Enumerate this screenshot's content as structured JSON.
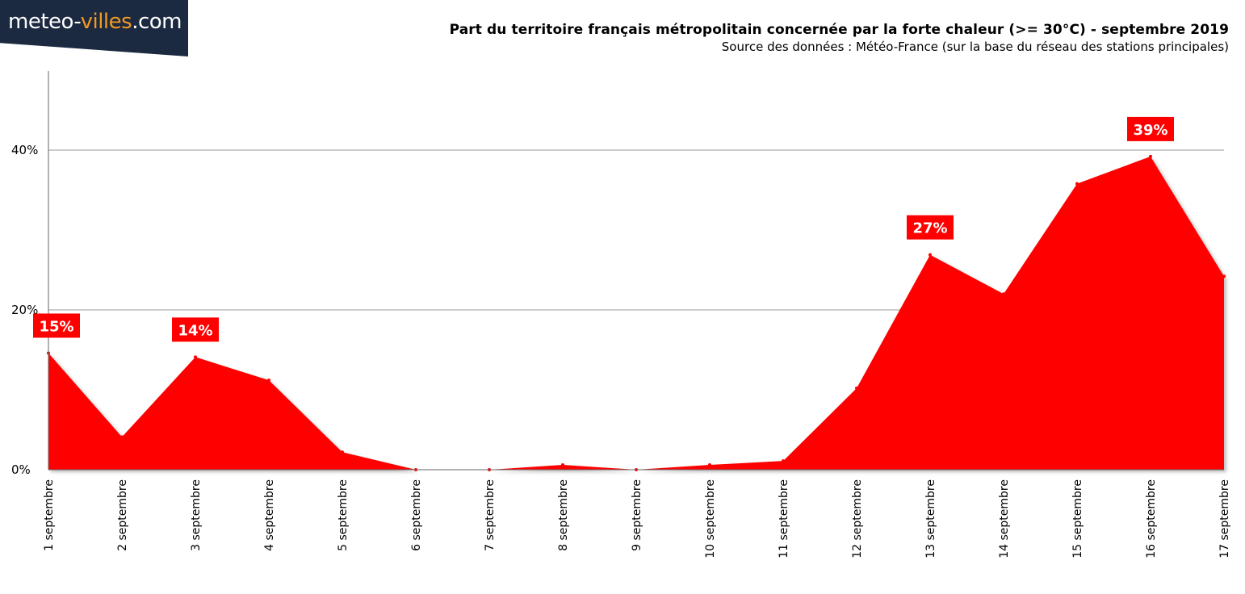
{
  "logo": {
    "part1": "meteo-",
    "part2": "villes",
    "part3": ".com"
  },
  "chart_data": {
    "type": "area",
    "title": "Part du territoire français métropolitain concernée par la forte chaleur (>= 30°C) - septembre 2019",
    "subtitle": "Source des données : Météo-France (sur la base du réseau des stations principales)",
    "xlabel": "",
    "ylabel": "",
    "categories": [
      "1 septembre",
      "2 septembre",
      "3 septembre",
      "4 septembre",
      "5 septembre",
      "6 septembre",
      "7 septembre",
      "8 septembre",
      "9 septembre",
      "10 septembre",
      "11 septembre",
      "12 septembre",
      "13 septembre",
      "14 septembre",
      "15 septembre",
      "16 septembre",
      "17 septembre"
    ],
    "values": [
      14.6,
      4.1,
      14.1,
      11.2,
      2.2,
      0,
      0,
      0.6,
      0,
      0.6,
      1.1,
      10.2,
      26.9,
      22.0,
      35.8,
      39.2,
      24.2
    ],
    "data_labels": [
      {
        "index": 0,
        "text": "15%"
      },
      {
        "index": 2,
        "text": "14%"
      },
      {
        "index": 12,
        "text": "27%"
      },
      {
        "index": 15,
        "text": "39%"
      }
    ],
    "y_ticks": [
      {
        "value": 0,
        "label": "0%"
      },
      {
        "value": 20,
        "label": "20%"
      },
      {
        "value": 40,
        "label": "40%"
      }
    ],
    "ylim": [
      0,
      50
    ],
    "grid": true,
    "legend": "none",
    "colors": {
      "fill": "#ff0000",
      "label_bg": "#ff0000",
      "grid": "#9a9a9a",
      "logo_bg": "#1c2a41",
      "logo_accent": "#f39a1f"
    }
  }
}
